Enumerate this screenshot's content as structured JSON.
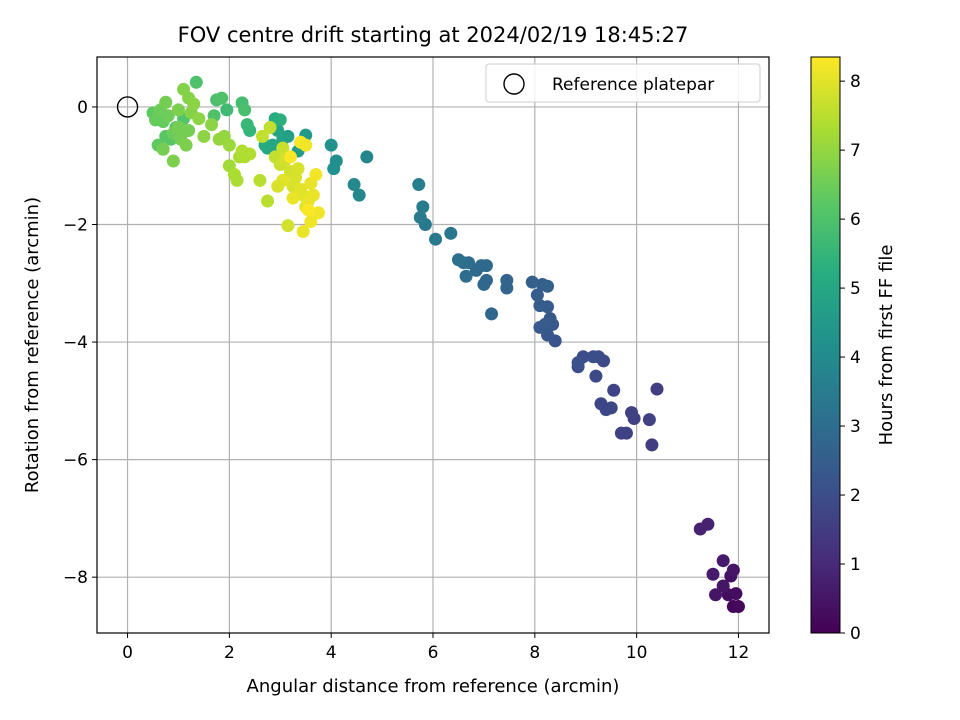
{
  "chart_data": {
    "type": "scatter",
    "title": "FOV centre drift starting at 2024/02/19 18:45:27",
    "xlabel": "Angular distance from reference (arcmin)",
    "ylabel": "Rotation from reference (arcmin)",
    "xlim": [
      -0.6,
      12.6
    ],
    "ylim": [
      -8.95,
      0.85
    ],
    "xticks": [
      0,
      2,
      4,
      6,
      8,
      10,
      12
    ],
    "yticks": [
      0,
      -2,
      -4,
      -6,
      -8
    ],
    "xtick_labels": [
      "0",
      "2",
      "4",
      "6",
      "8",
      "10",
      "12"
    ],
    "ytick_labels": [
      "0",
      "−2",
      "−4",
      "−6",
      "−8"
    ],
    "grid": true,
    "legend": {
      "position": "top-right",
      "entries": [
        "Reference platepar"
      ]
    },
    "reference_point": {
      "x": 0,
      "y": 0,
      "label": "Reference platepar"
    },
    "colorbar": {
      "label": "Hours from first FF file",
      "colormap": "viridis",
      "range": [
        0,
        8.35
      ],
      "ticks": [
        0,
        1,
        2,
        3,
        4,
        5,
        6,
        7,
        8
      ],
      "tick_labels": [
        "0",
        "1",
        "2",
        "3",
        "4",
        "5",
        "6",
        "7",
        "8"
      ]
    },
    "points": [
      [
        11.9,
        -8.5,
        0.1
      ],
      [
        12.0,
        -8.5,
        0.2
      ],
      [
        11.95,
        -8.28,
        0.3
      ],
      [
        11.8,
        -8.3,
        0.3
      ],
      [
        11.85,
        -7.98,
        0.4
      ],
      [
        11.9,
        -7.88,
        0.5
      ],
      [
        11.7,
        -8.15,
        0.5
      ],
      [
        11.55,
        -8.3,
        0.5
      ],
      [
        11.5,
        -7.95,
        0.6
      ],
      [
        11.7,
        -7.72,
        0.6
      ],
      [
        11.4,
        -7.1,
        0.8
      ],
      [
        11.25,
        -7.18,
        0.8
      ],
      [
        10.3,
        -5.75,
        1.5
      ],
      [
        10.4,
        -4.8,
        1.5
      ],
      [
        10.25,
        -5.32,
        1.6
      ],
      [
        9.95,
        -5.3,
        1.6
      ],
      [
        9.9,
        -5.2,
        1.6
      ],
      [
        9.8,
        -5.55,
        1.7
      ],
      [
        9.7,
        -5.55,
        1.7
      ],
      [
        9.55,
        -4.82,
        1.7
      ],
      [
        9.4,
        -5.15,
        1.8
      ],
      [
        9.5,
        -5.12,
        1.8
      ],
      [
        9.3,
        -5.05,
        1.8
      ],
      [
        9.35,
        -4.32,
        1.9
      ],
      [
        9.2,
        -4.58,
        1.9
      ],
      [
        9.25,
        -4.25,
        1.9
      ],
      [
        9.15,
        -4.25,
        2.0
      ],
      [
        8.95,
        -4.25,
        2.0
      ],
      [
        8.85,
        -4.42,
        2.0
      ],
      [
        8.85,
        -4.35,
        2.1
      ],
      [
        8.4,
        -3.98,
        2.2
      ],
      [
        8.25,
        -3.88,
        2.3
      ],
      [
        8.35,
        -3.7,
        2.3
      ],
      [
        8.3,
        -3.6,
        2.3
      ],
      [
        8.1,
        -3.75,
        2.4
      ],
      [
        8.2,
        -3.7,
        2.4
      ],
      [
        8.25,
        -3.4,
        2.4
      ],
      [
        8.1,
        -3.38,
        2.5
      ],
      [
        8.05,
        -3.2,
        2.5
      ],
      [
        8.15,
        -3.02,
        2.5
      ],
      [
        8.25,
        -3.05,
        2.6
      ],
      [
        7.95,
        -2.98,
        2.6
      ],
      [
        7.45,
        -2.95,
        2.7
      ],
      [
        7.45,
        -3.08,
        2.7
      ],
      [
        7.15,
        -3.52,
        2.8
      ],
      [
        7.05,
        -2.95,
        2.8
      ],
      [
        7.0,
        -3.02,
        2.8
      ],
      [
        7.05,
        -2.7,
        2.9
      ],
      [
        6.95,
        -2.7,
        2.9
      ],
      [
        6.85,
        -2.78,
        2.9
      ],
      [
        6.7,
        -2.65,
        3.0
      ],
      [
        6.65,
        -2.88,
        3.0
      ],
      [
        6.6,
        -2.65,
        3.0
      ],
      [
        6.5,
        -2.6,
        3.1
      ],
      [
        6.35,
        -2.15,
        3.3
      ],
      [
        6.05,
        -2.25,
        3.4
      ],
      [
        5.85,
        -2.0,
        3.4
      ],
      [
        5.8,
        -1.7,
        3.5
      ],
      [
        5.75,
        -1.88,
        3.5
      ],
      [
        5.72,
        -1.32,
        3.6
      ],
      [
        4.7,
        -0.85,
        3.8
      ],
      [
        4.55,
        -1.5,
        3.9
      ],
      [
        4.45,
        -1.32,
        3.9
      ],
      [
        4.1,
        -0.92,
        4.1
      ],
      [
        4.05,
        -1.05,
        4.2
      ],
      [
        4.0,
        -0.65,
        4.3
      ],
      [
        3.5,
        -0.48,
        4.5
      ],
      [
        3.35,
        -0.75,
        4.6
      ],
      [
        3.15,
        -0.5,
        4.7
      ],
      [
        3.05,
        -0.55,
        4.8
      ],
      [
        2.95,
        -0.4,
        4.9
      ],
      [
        2.85,
        -0.65,
        5.0
      ],
      [
        2.75,
        -0.7,
        5.0
      ],
      [
        2.7,
        -0.65,
        5.1
      ],
      [
        2.9,
        -0.2,
        5.2
      ],
      [
        3.0,
        -0.22,
        5.3
      ],
      [
        2.4,
        -0.4,
        5.5
      ],
      [
        2.35,
        -0.3,
        5.6
      ],
      [
        1.95,
        -0.05,
        5.7
      ],
      [
        2.25,
        0.07,
        5.8
      ],
      [
        2.3,
        -0.05,
        5.9
      ],
      [
        1.75,
        0.12,
        5.9
      ],
      [
        1.85,
        0.15,
        6.0
      ],
      [
        1.7,
        -0.15,
        6.0
      ],
      [
        1.35,
        0.42,
        6.0
      ],
      [
        1.1,
        -0.2,
        6.1
      ],
      [
        0.95,
        -0.35,
        6.1
      ],
      [
        0.85,
        -0.55,
        6.2
      ],
      [
        0.75,
        -0.5,
        6.2
      ],
      [
        0.6,
        -0.65,
        6.3
      ],
      [
        0.5,
        -0.1,
        6.3
      ],
      [
        0.55,
        -0.22,
        6.4
      ],
      [
        0.7,
        -0.25,
        6.4
      ],
      [
        0.65,
        -0.05,
        6.5
      ],
      [
        0.8,
        -0.15,
        6.5
      ],
      [
        0.9,
        -0.45,
        6.5
      ],
      [
        1.0,
        -0.35,
        6.6
      ],
      [
        1.05,
        -0.55,
        6.6
      ],
      [
        1.2,
        -0.4,
        6.6
      ],
      [
        1.15,
        -0.65,
        6.7
      ],
      [
        0.9,
        -0.92,
        6.7
      ],
      [
        0.7,
        -0.72,
        6.6
      ],
      [
        0.75,
        0.08,
        6.6
      ],
      [
        1.0,
        -0.05,
        6.7
      ],
      [
        1.1,
        0.3,
        6.8
      ],
      [
        1.2,
        0.15,
        6.8
      ],
      [
        1.25,
        -0.1,
        6.8
      ],
      [
        1.3,
        0.05,
        6.9
      ],
      [
        1.4,
        -0.2,
        6.9
      ],
      [
        1.5,
        -0.5,
        6.9
      ],
      [
        1.65,
        -0.3,
        6.9
      ],
      [
        1.8,
        -0.55,
        7.0
      ],
      [
        1.9,
        -0.5,
        7.0
      ],
      [
        2.0,
        -0.65,
        7.1
      ],
      [
        2.0,
        -1.0,
        7.2
      ],
      [
        2.1,
        -1.15,
        7.3
      ],
      [
        2.15,
        -1.25,
        7.3
      ],
      [
        2.2,
        -0.85,
        7.3
      ],
      [
        2.25,
        -0.75,
        7.4
      ],
      [
        2.3,
        -0.85,
        7.4
      ],
      [
        2.4,
        -0.8,
        7.4
      ],
      [
        2.6,
        -1.25,
        7.5
      ],
      [
        2.75,
        -1.6,
        7.5
      ],
      [
        2.65,
        -0.5,
        7.6
      ],
      [
        2.8,
        -0.35,
        7.6
      ],
      [
        2.9,
        -0.85,
        7.6
      ],
      [
        3.0,
        -0.98,
        7.7
      ],
      [
        3.05,
        -0.7,
        7.7
      ],
      [
        3.1,
        -0.9,
        7.8
      ],
      [
        3.2,
        -1.1,
        7.8
      ],
      [
        3.15,
        -2.02,
        7.8
      ],
      [
        3.25,
        -1.35,
        7.9
      ],
      [
        3.3,
        -1.2,
        7.9
      ],
      [
        3.35,
        -1.05,
        7.9
      ],
      [
        3.4,
        -1.4,
        8.0
      ],
      [
        3.45,
        -1.5,
        8.0
      ],
      [
        3.5,
        -1.7,
        8.0
      ],
      [
        3.45,
        -2.12,
        8.1
      ],
      [
        3.55,
        -1.6,
        8.1
      ],
      [
        3.6,
        -1.3,
        8.1
      ],
      [
        3.65,
        -1.5,
        8.1
      ],
      [
        3.7,
        -1.15,
        8.2
      ],
      [
        3.6,
        -1.95,
        8.2
      ],
      [
        3.75,
        -1.8,
        8.2
      ],
      [
        3.55,
        -1.75,
        8.3
      ],
      [
        3.4,
        -0.6,
        8.3
      ],
      [
        3.2,
        -0.85,
        8.3
      ],
      [
        3.5,
        -0.65,
        8.2
      ],
      [
        3.05,
        -1.25,
        8.0
      ],
      [
        2.95,
        -1.35,
        7.9
      ],
      [
        3.25,
        -1.55,
        8.1
      ]
    ]
  }
}
